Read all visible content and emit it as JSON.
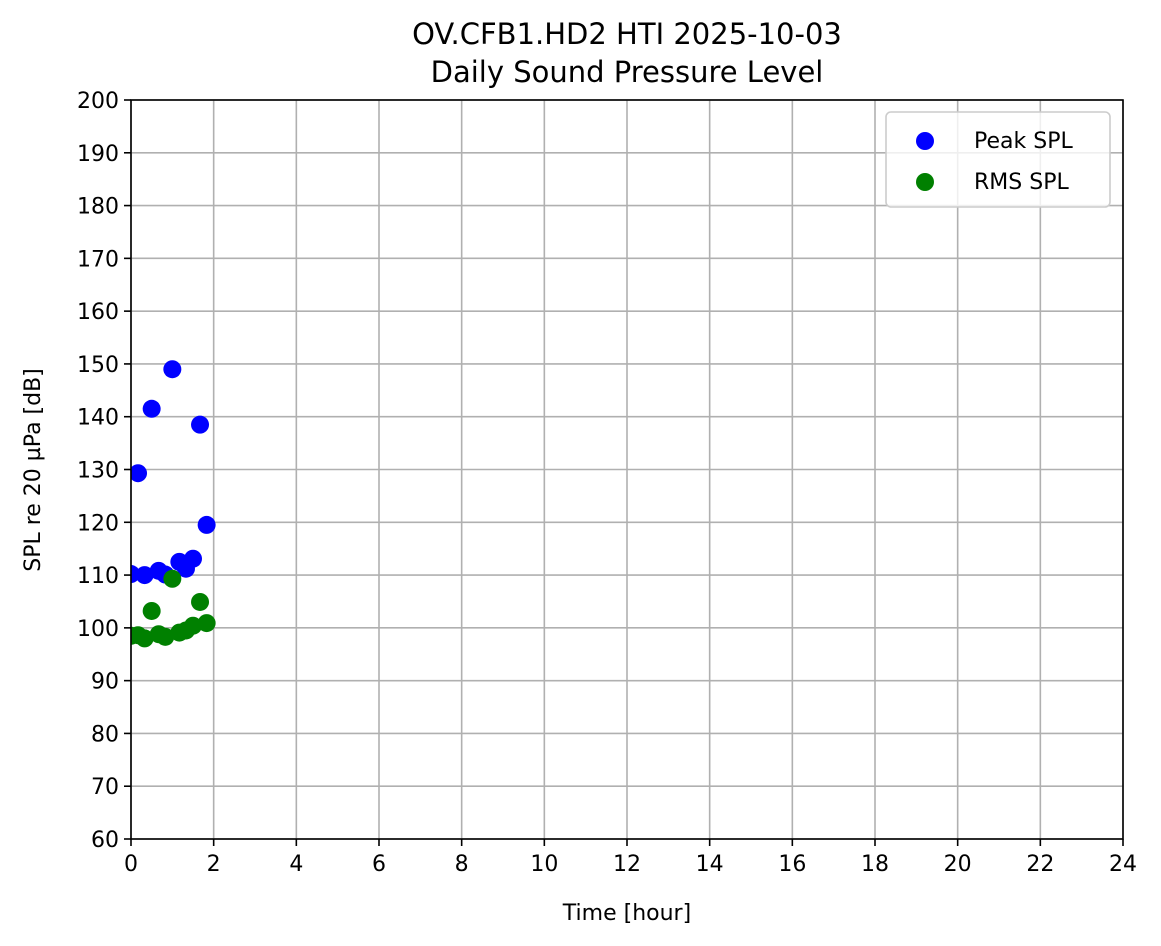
{
  "chart_data": {
    "type": "scatter",
    "title_line1": "OV.CFB1.HD2 HTI 2025-10-03",
    "title_line2": "Daily Sound Pressure Level",
    "xlabel": "Time [hour]",
    "ylabel": "SPL re 20 µPa [dB]",
    "xlim": [
      0,
      24
    ],
    "ylim": [
      60,
      200
    ],
    "xticks": [
      0,
      2,
      4,
      6,
      8,
      10,
      12,
      14,
      16,
      18,
      20,
      22,
      24
    ],
    "yticks": [
      60,
      70,
      80,
      90,
      100,
      110,
      120,
      130,
      140,
      150,
      160,
      170,
      180,
      190,
      200
    ],
    "grid": true,
    "legend_position": "top-right",
    "series": [
      {
        "name": "Peak SPL",
        "color": "#0000ff",
        "points": [
          {
            "x": 0.0,
            "y": 110.2
          },
          {
            "x": 0.17,
            "y": 129.3
          },
          {
            "x": 0.33,
            "y": 110.0
          },
          {
            "x": 0.5,
            "y": 141.5
          },
          {
            "x": 0.67,
            "y": 110.8
          },
          {
            "x": 0.83,
            "y": 110.1
          },
          {
            "x": 1.0,
            "y": 149.0
          },
          {
            "x": 1.17,
            "y": 112.5
          },
          {
            "x": 1.33,
            "y": 111.2
          },
          {
            "x": 1.5,
            "y": 113.1
          },
          {
            "x": 1.67,
            "y": 138.5
          },
          {
            "x": 1.83,
            "y": 119.5
          }
        ]
      },
      {
        "name": "RMS SPL",
        "color": "#008000",
        "points": [
          {
            "x": 0.0,
            "y": 98.5
          },
          {
            "x": 0.17,
            "y": 98.6
          },
          {
            "x": 0.33,
            "y": 98.0
          },
          {
            "x": 0.5,
            "y": 103.2
          },
          {
            "x": 0.67,
            "y": 98.8
          },
          {
            "x": 0.83,
            "y": 98.3
          },
          {
            "x": 1.0,
            "y": 109.3
          },
          {
            "x": 1.17,
            "y": 99.1
          },
          {
            "x": 1.33,
            "y": 99.5
          },
          {
            "x": 1.5,
            "y": 100.4
          },
          {
            "x": 1.67,
            "y": 104.9
          },
          {
            "x": 1.83,
            "y": 100.9
          }
        ]
      }
    ]
  }
}
